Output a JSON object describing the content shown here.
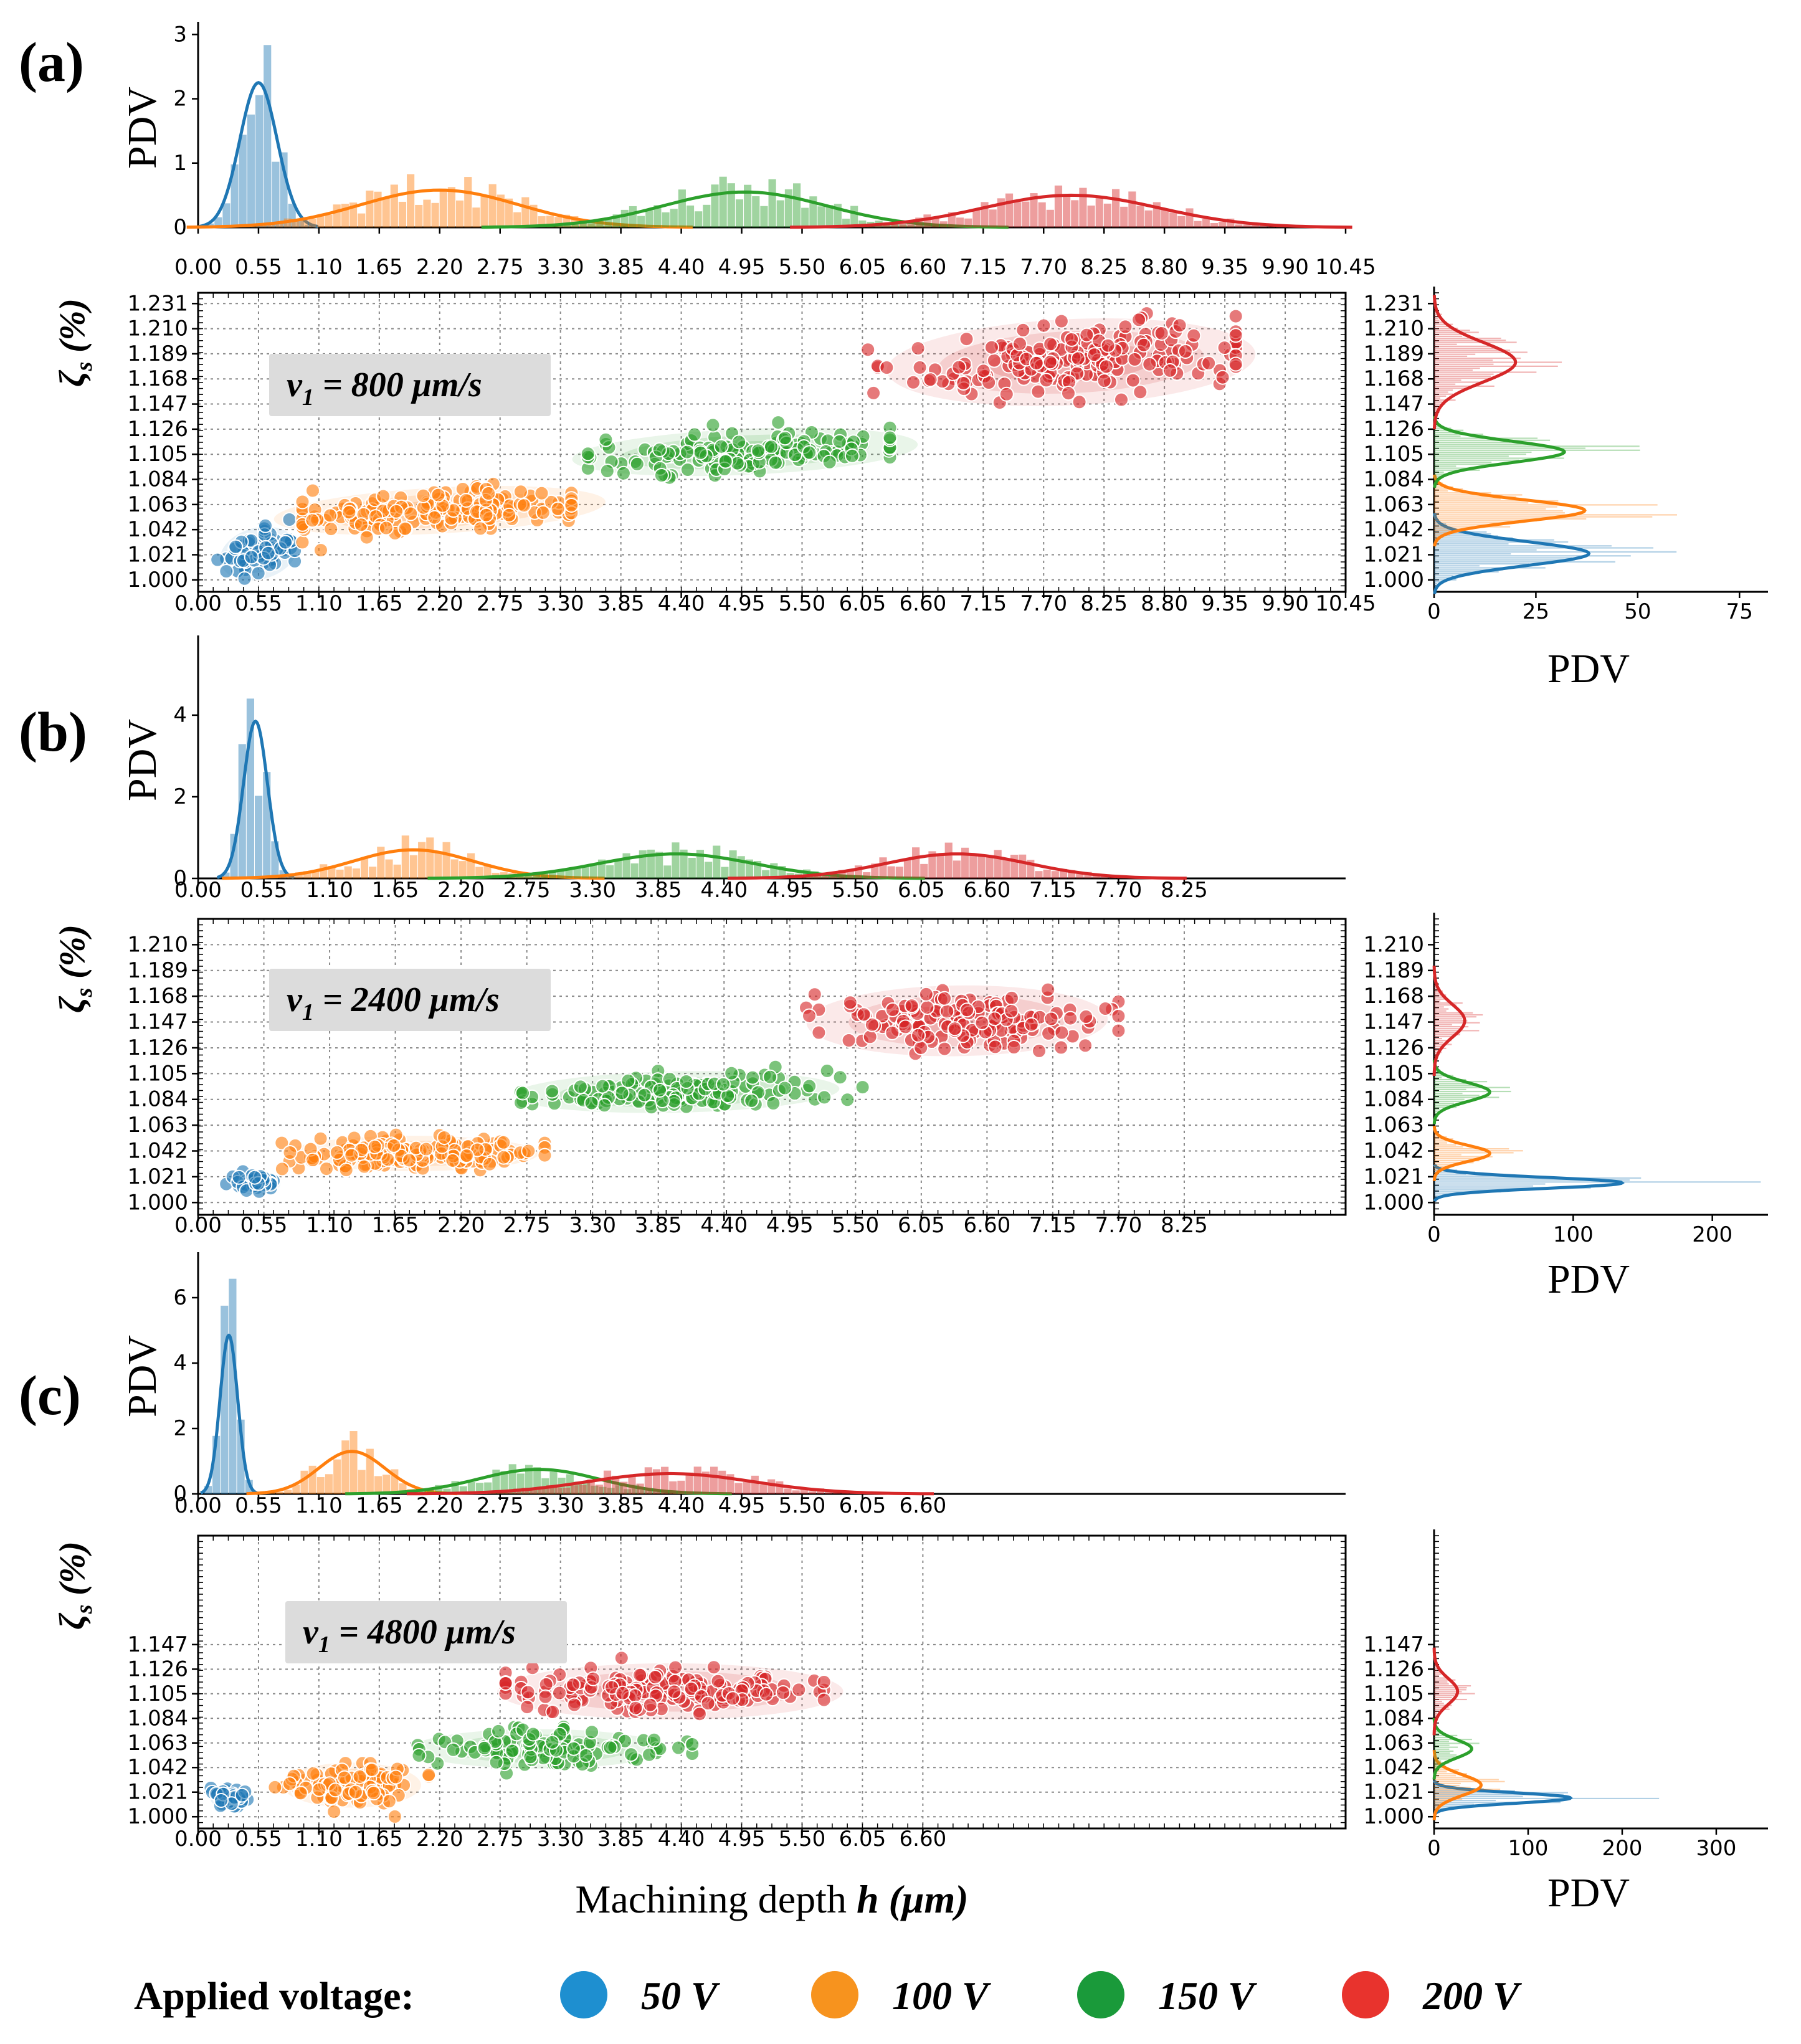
{
  "colors": {
    "50V": "#1f77b4",
    "100V": "#ff7f0e",
    "150V": "#2ca02c",
    "200V": "#d62728",
    "legend_50V": "#1e8fd0",
    "legend_100V": "#f7931e",
    "legend_150V": "#1a9a3a",
    "legend_200V": "#e8332d",
    "annotation_box": "#dcdcdc"
  },
  "legend": {
    "title": "Applied voltage:",
    "items": [
      {
        "label": "50 V",
        "color_key": "legend_50V"
      },
      {
        "label": "100 V",
        "color_key": "legend_100V"
      },
      {
        "label": "150 V",
        "color_key": "legend_150V"
      },
      {
        "label": "200 V",
        "color_key": "legend_200V"
      }
    ]
  },
  "shared_xlabel": {
    "plain": "Machining depth ",
    "bold_italic": "h (μm)"
  },
  "chart_data": [
    {
      "panel": "(a)",
      "type": "scatter",
      "annotation": "v1 = 800 μm/s",
      "annotation_parts": {
        "v": "v",
        "sub": "1",
        "rest": " = 800 μm/s"
      },
      "xlim": [
        0,
        10.45
      ],
      "xticks": [
        "0.00",
        "0.55",
        "1.10",
        "1.65",
        "2.20",
        "2.75",
        "3.30",
        "3.85",
        "4.40",
        "4.95",
        "5.50",
        "6.05",
        "6.60",
        "7.15",
        "7.70",
        "8.25",
        "8.80",
        "9.35",
        "9.90",
        "10.45"
      ],
      "ylim": [
        0.99,
        1.24
      ],
      "yticks": [
        "1.000",
        "1.021",
        "1.042",
        "1.063",
        "1.084",
        "1.105",
        "1.126",
        "1.147",
        "1.168",
        "1.189",
        "1.210",
        "1.231"
      ],
      "ylabel": "ζs (%)",
      "top_hist": {
        "ylabel": "PDV",
        "ylim": [
          0,
          3.1
        ],
        "yticks": [
          "0",
          "1",
          "2",
          "3"
        ]
      },
      "right_hist": {
        "xlabel": "PDV",
        "xlim": [
          0,
          82
        ],
        "xticks": [
          "0",
          "25",
          "50",
          "75"
        ]
      },
      "series": [
        {
          "name": "50 V",
          "color_key": "50V",
          "x_mean": 0.55,
          "x_sd": 0.17,
          "x_range": [
            0.05,
            0.88
          ],
          "y_mean": 1.022,
          "y_sd": 0.009,
          "slope": 0.02,
          "n": 70,
          "kde_x_peak": 2.25,
          "kde_y_peak": 38
        },
        {
          "name": "100 V",
          "color_key": "100V",
          "x_mean": 2.2,
          "x_sd": 0.72,
          "x_range": [
            0.95,
            3.4
          ],
          "y_mean": 1.058,
          "y_sd": 0.008,
          "slope": 0.012,
          "n": 190,
          "kde_x_peak": 0.58,
          "kde_y_peak": 37
        },
        {
          "name": "150 V",
          "color_key": "150V",
          "x_mean": 4.98,
          "x_sd": 0.75,
          "x_range": [
            3.55,
            6.3
          ],
          "y_mean": 1.107,
          "y_sd": 0.008,
          "slope": 0.011,
          "n": 150,
          "kde_x_peak": 0.55,
          "kde_y_peak": 32
        },
        {
          "name": "200 V",
          "color_key": "200V",
          "x_mean": 7.95,
          "x_sd": 0.8,
          "x_range": [
            6.1,
            9.45
          ],
          "y_mean": 1.182,
          "y_sd": 0.015,
          "slope": 0.014,
          "n": 190,
          "kde_x_peak": 0.5,
          "kde_y_peak": 20
        }
      ]
    },
    {
      "panel": "(b)",
      "type": "scatter",
      "annotation": "v1 = 2400 μm/s",
      "annotation_parts": {
        "v": "v",
        "sub": "1",
        "rest": " = 2400 μm/s"
      },
      "xlim": [
        0,
        9.6
      ],
      "xticks": [
        "0.00",
        "0.55",
        "1.10",
        "1.65",
        "2.20",
        "2.75",
        "3.30",
        "3.85",
        "4.40",
        "4.95",
        "5.50",
        "6.05",
        "6.60",
        "7.15",
        "7.70",
        "8.25"
      ],
      "ylim": [
        0.99,
        1.231
      ],
      "yticks": [
        "1.000",
        "1.021",
        "1.042",
        "1.063",
        "1.084",
        "1.105",
        "1.126",
        "1.147",
        "1.168",
        "1.189",
        "1.210"
      ],
      "ylabel": "ζs (%)",
      "top_hist": {
        "ylabel": "PDV",
        "ylim": [
          0,
          5.8
        ],
        "yticks": [
          "0",
          "2",
          "4"
        ]
      },
      "right_hist": {
        "xlabel": "PDV",
        "xlim": [
          0,
          240
        ],
        "xticks": [
          "0",
          "100",
          "200"
        ]
      },
      "series": [
        {
          "name": "50 V",
          "color_key": "50V",
          "x_mean": 0.48,
          "x_sd": 0.1,
          "x_range": [
            0.22,
            0.72
          ],
          "y_mean": 1.016,
          "y_sd": 0.004,
          "slope": 0.0,
          "n": 40,
          "kde_x_peak": 3.85,
          "kde_y_peak": 135
        },
        {
          "name": "100 V",
          "color_key": "100V",
          "x_mean": 1.8,
          "x_sd": 0.5,
          "x_range": [
            0.7,
            2.9
          ],
          "y_mean": 1.04,
          "y_sd": 0.006,
          "slope": 0.0,
          "n": 190,
          "kde_x_peak": 0.7,
          "kde_y_peak": 40
        },
        {
          "name": "150 V",
          "color_key": "150V",
          "x_mean": 4.0,
          "x_sd": 0.65,
          "x_range": [
            2.7,
            5.7
          ],
          "y_mean": 1.09,
          "y_sd": 0.007,
          "slope": 0.006,
          "n": 140,
          "kde_x_peak": 0.6,
          "kde_y_peak": 40
        },
        {
          "name": "200 V",
          "color_key": "200V",
          "x_mean": 6.35,
          "x_sd": 0.6,
          "x_range": [
            4.9,
            7.7
          ],
          "y_mean": 1.148,
          "y_sd": 0.012,
          "slope": 0.004,
          "n": 150,
          "kde_x_peak": 0.6,
          "kde_y_peak": 22
        }
      ]
    },
    {
      "panel": "(c)",
      "type": "scatter",
      "annotation": "v1 = 4800 μm/s",
      "annotation_parts": {
        "v": "v",
        "sub": "1",
        "rest": " = 4800 μm/s"
      },
      "xlim": [
        0,
        10.45
      ],
      "xticks": [
        "0.00",
        "0.55",
        "1.10",
        "1.65",
        "2.20",
        "2.75",
        "3.30",
        "3.85",
        "4.40",
        "4.95",
        "5.50",
        "6.05",
        "6.60"
      ],
      "ylim": [
        0.99,
        1.24
      ],
      "yticks": [
        "1.000",
        "1.021",
        "1.042",
        "1.063",
        "1.084",
        "1.105",
        "1.126",
        "1.147"
      ],
      "ylabel": "ζs (%)",
      "top_hist": {
        "ylabel": "PDV",
        "ylim": [
          0,
          7.2
        ],
        "yticks": [
          "0",
          "2",
          "4",
          "6"
        ]
      },
      "right_hist": {
        "xlabel": "PDV",
        "xlim": [
          0,
          355
        ],
        "xticks": [
          "0",
          "100",
          "200",
          "300"
        ]
      },
      "series": [
        {
          "name": "50 V",
          "color_key": "50V",
          "x_mean": 0.28,
          "x_sd": 0.08,
          "x_range": [
            0.02,
            0.55
          ],
          "y_mean": 1.016,
          "y_sd": 0.004,
          "slope": 0.0,
          "n": 40,
          "kde_x_peak": 4.85,
          "kde_y_peak": 145
        },
        {
          "name": "100 V",
          "color_key": "100V",
          "x_mean": 1.4,
          "x_sd": 0.3,
          "x_range": [
            0.7,
            2.1
          ],
          "y_mean": 1.027,
          "y_sd": 0.008,
          "slope": 0.0,
          "n": 100,
          "kde_x_peak": 1.3,
          "kde_y_peak": 50
        },
        {
          "name": "150 V",
          "color_key": "150V",
          "x_mean": 3.1,
          "x_sd": 0.55,
          "x_range": [
            2.0,
            4.5
          ],
          "y_mean": 1.058,
          "y_sd": 0.007,
          "slope": 0.0,
          "n": 120,
          "kde_x_peak": 0.75,
          "kde_y_peak": 40
        },
        {
          "name": "200 V",
          "color_key": "200V",
          "x_mean": 4.3,
          "x_sd": 0.75,
          "x_range": [
            2.8,
            5.7
          ],
          "y_mean": 1.107,
          "y_sd": 0.01,
          "slope": 0.0,
          "n": 170,
          "kde_x_peak": 0.62,
          "kde_y_peak": 25
        }
      ]
    }
  ]
}
